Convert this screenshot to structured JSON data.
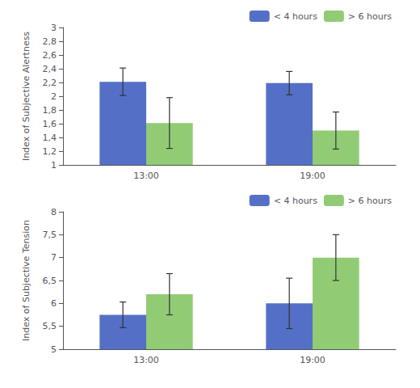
{
  "chart_data": [
    {
      "type": "bar",
      "ylabel": "Index of Subjective Alertness",
      "categories": [
        "13:00",
        "19:00"
      ],
      "series": [
        {
          "name": "< 4 hours",
          "values": [
            2.21,
            2.19
          ],
          "errors": [
            0.2,
            0.17
          ]
        },
        {
          "name": "> 6 hours",
          "values": [
            1.61,
            1.5
          ],
          "errors": [
            0.37,
            0.27
          ]
        }
      ],
      "ylim": [
        1,
        3
      ],
      "yticks": [
        1,
        {
          "value": 1.2,
          "label": "1,2"
        },
        {
          "value": 1.4,
          "label": "1,4"
        },
        {
          "value": 1.6,
          "label": "1,6"
        },
        {
          "value": 1.8,
          "label": "1,8"
        },
        2,
        {
          "value": 2.2,
          "label": "2,2"
        },
        {
          "value": 2.4,
          "label": "2,4"
        },
        {
          "value": 2.6,
          "label": "2,6"
        },
        {
          "value": 2.8,
          "label": "2,8"
        },
        3
      ],
      "grid": false,
      "legend": "upper right"
    },
    {
      "type": "bar",
      "ylabel": "Index of Subjective Tension",
      "categories": [
        "13:00",
        "19:00"
      ],
      "series": [
        {
          "name": "< 4 hours",
          "values": [
            5.75,
            6.0
          ],
          "errors": [
            0.28,
            0.55
          ]
        },
        {
          "name": "> 6 hours",
          "values": [
            6.2,
            7.0
          ],
          "errors": [
            0.45,
            0.5
          ]
        }
      ],
      "ylim": [
        5,
        8
      ],
      "yticks": [
        5,
        {
          "value": 5.5,
          "label": "5,5"
        },
        6,
        {
          "value": 6.5,
          "label": "6,5"
        },
        7,
        {
          "value": 7.5,
          "label": "7,5"
        },
        8
      ],
      "grid": false,
      "legend": "upper right"
    }
  ]
}
